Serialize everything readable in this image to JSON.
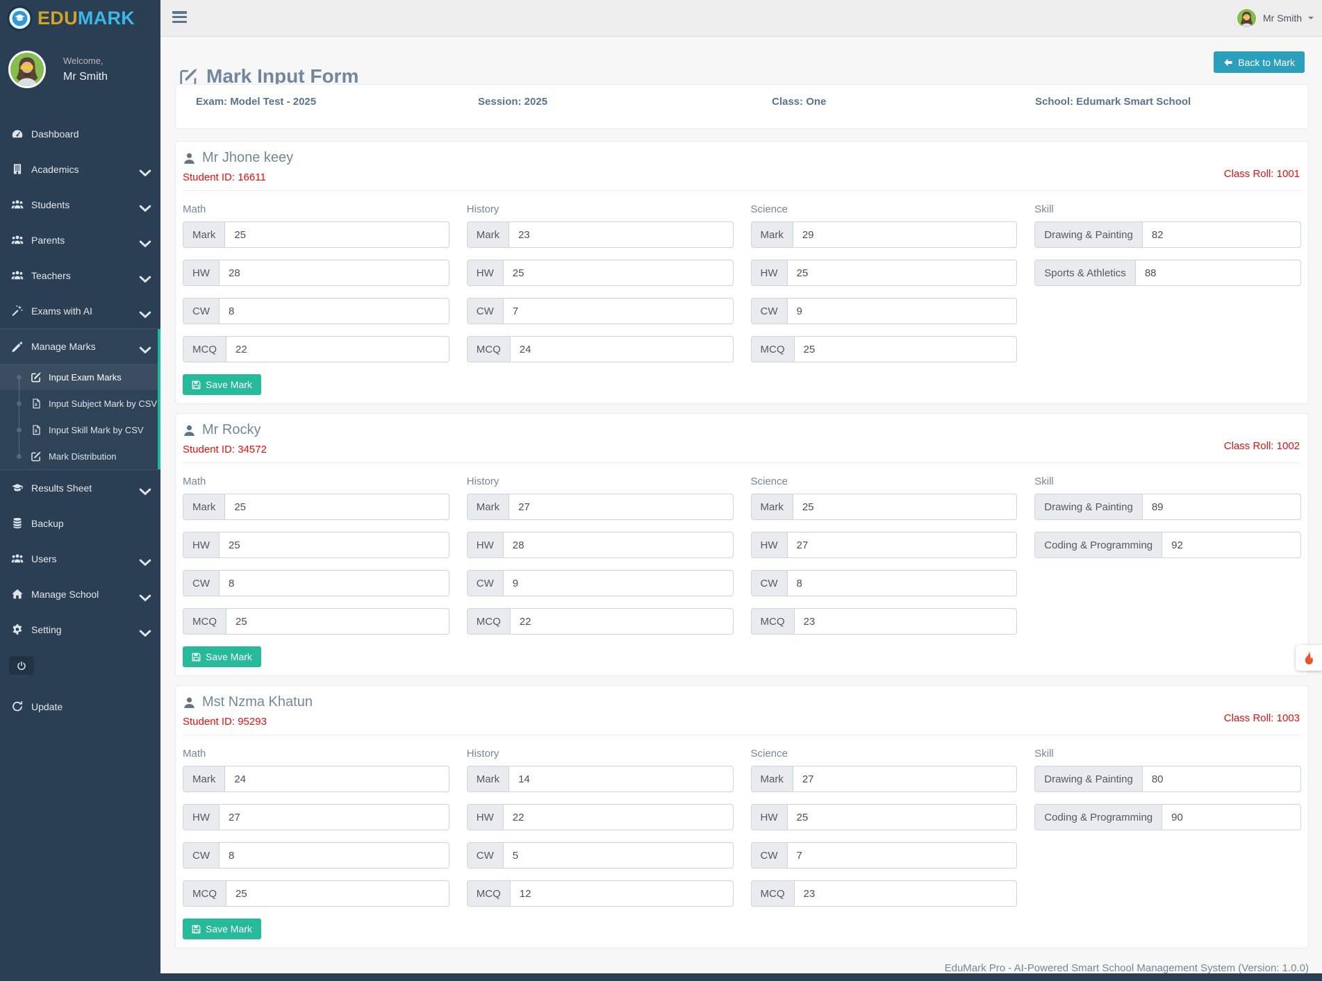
{
  "brand": {
    "logo_icon": "edumark-badge-icon",
    "edu": "EDU",
    "mark": "MARK"
  },
  "topbar": {
    "hamburger_icon": "hamburger-icon",
    "user_name": "Mr Smith",
    "avatar_icon": "user-avatar-image"
  },
  "sidebar": {
    "welcome_label": "Welcome,",
    "user_name": "Mr Smith",
    "menu_top": [
      {
        "label": "Dashboard",
        "icon": "dashboard-gauge-icon",
        "chevron": false
      },
      {
        "label": "Academics",
        "icon": "school-building-icon",
        "chevron": true
      },
      {
        "label": "Students",
        "icon": "users-group-icon",
        "chevron": true
      },
      {
        "label": "Parents",
        "icon": "users-group-icon",
        "chevron": true
      },
      {
        "label": "Teachers",
        "icon": "users-group-icon",
        "chevron": true
      },
      {
        "label": "Exams with AI",
        "icon": "magic-wand-icon",
        "chevron": true
      }
    ],
    "manage_marks": {
      "label": "Manage Marks",
      "icon": "pencil-icon",
      "chevron": true,
      "submenu": [
        {
          "label": "Input Exam Marks",
          "icon": "edit-square-icon",
          "active": true
        },
        {
          "label": "Input Subject Mark by CSV",
          "icon": "csv-file-icon",
          "active": false
        },
        {
          "label": "Input Skill Mark by CSV",
          "icon": "csv-file-icon",
          "active": false
        },
        {
          "label": "Mark Distribution",
          "icon": "edit-square-icon",
          "active": false
        }
      ]
    },
    "menu_bottom": [
      {
        "label": "Results Sheet",
        "icon": "graduation-cap-icon",
        "chevron": true
      },
      {
        "label": "Backup",
        "icon": "database-icon",
        "chevron": false
      },
      {
        "label": "Users",
        "icon": "users-group-icon",
        "chevron": true
      },
      {
        "label": "Manage School",
        "icon": "home-icon",
        "chevron": true
      },
      {
        "label": "Setting",
        "icon": "gear-icon",
        "chevron": true
      }
    ],
    "logout_icon": "power-icon",
    "update_item": {
      "label": "Update",
      "icon": "refresh-icon",
      "chevron": false
    }
  },
  "page": {
    "title": "Mark Input Form",
    "title_icon": "edit-square-icon",
    "back_button_label": "Back to Mark",
    "info_items": [
      {
        "label": "Exam: Model Test - 2025"
      },
      {
        "label": "Session: 2025"
      },
      {
        "label": "Class: One"
      },
      {
        "label": "School: Edumark Smart School"
      }
    ],
    "save_button_label": "Save Mark",
    "footer_text": "EduMark Pro - AI-Powered Smart School Management System (Version: 1.0.0)"
  },
  "students": [
    {
      "name": "Mr Jhone keey",
      "student_id_label": "Student ID: 16611",
      "class_roll_label": "Class Roll: 1001",
      "subjects": [
        {
          "label": "Math",
          "rows": [
            {
              "label": "Mark",
              "value": "25"
            },
            {
              "label": "HW",
              "value": "28"
            },
            {
              "label": "CW",
              "value": "8"
            },
            {
              "label": "MCQ",
              "value": "22"
            }
          ]
        },
        {
          "label": "History",
          "rows": [
            {
              "label": "Mark",
              "value": "23"
            },
            {
              "label": "HW",
              "value": "25"
            },
            {
              "label": "CW",
              "value": "7"
            },
            {
              "label": "MCQ",
              "value": "24"
            }
          ]
        },
        {
          "label": "Science",
          "rows": [
            {
              "label": "Mark",
              "value": "29"
            },
            {
              "label": "HW",
              "value": "25"
            },
            {
              "label": "CW",
              "value": "9"
            },
            {
              "label": "MCQ",
              "value": "25"
            }
          ]
        }
      ],
      "skill": {
        "label": "Skill",
        "rows": [
          {
            "label": "Drawing & Painting",
            "value": "82"
          },
          {
            "label": "Sports & Athletics",
            "value": "88"
          }
        ]
      }
    },
    {
      "name": "Mr Rocky",
      "student_id_label": "Student ID: 34572",
      "class_roll_label": "Class Roll: 1002",
      "subjects": [
        {
          "label": "Math",
          "rows": [
            {
              "label": "Mark",
              "value": "25"
            },
            {
              "label": "HW",
              "value": "25"
            },
            {
              "label": "CW",
              "value": "8"
            },
            {
              "label": "MCQ",
              "value": "25"
            }
          ]
        },
        {
          "label": "History",
          "rows": [
            {
              "label": "Mark",
              "value": "27"
            },
            {
              "label": "HW",
              "value": "28"
            },
            {
              "label": "CW",
              "value": "9"
            },
            {
              "label": "MCQ",
              "value": "22"
            }
          ]
        },
        {
          "label": "Science",
          "rows": [
            {
              "label": "Mark",
              "value": "25"
            },
            {
              "label": "HW",
              "value": "27"
            },
            {
              "label": "CW",
              "value": "8"
            },
            {
              "label": "MCQ",
              "value": "23"
            }
          ]
        }
      ],
      "skill": {
        "label": "Skill",
        "rows": [
          {
            "label": "Drawing & Painting",
            "value": "89"
          },
          {
            "label": "Coding & Programming",
            "value": "92"
          }
        ]
      }
    },
    {
      "name": "Mst Nzma Khatun",
      "student_id_label": "Student ID: 95293",
      "class_roll_label": "Class Roll: 1003",
      "subjects": [
        {
          "label": "Math",
          "rows": [
            {
              "label": "Mark",
              "value": "24"
            },
            {
              "label": "HW",
              "value": "27"
            },
            {
              "label": "CW",
              "value": "8"
            },
            {
              "label": "MCQ",
              "value": "25"
            }
          ]
        },
        {
          "label": "History",
          "rows": [
            {
              "label": "Mark",
              "value": "14"
            },
            {
              "label": "HW",
              "value": "22"
            },
            {
              "label": "CW",
              "value": "5"
            },
            {
              "label": "MCQ",
              "value": "12"
            }
          ]
        },
        {
          "label": "Science",
          "rows": [
            {
              "label": "Mark",
              "value": "27"
            },
            {
              "label": "HW",
              "value": "25"
            },
            {
              "label": "CW",
              "value": "7"
            },
            {
              "label": "MCQ",
              "value": "23"
            }
          ]
        }
      ],
      "skill": {
        "label": "Skill",
        "rows": [
          {
            "label": "Drawing & Painting",
            "value": "80"
          },
          {
            "label": "Coding & Programming",
            "value": "90"
          }
        ]
      }
    }
  ],
  "colors": {
    "sidebar_bg": "#2A3F54",
    "accent_teal": "#1ABB9C",
    "save_green": "#26B99A",
    "back_button_teal": "#2B9FBC",
    "alert_red": "#E90D0D",
    "flame_orange": "#E8552D",
    "brand_gold": "#D2A425",
    "brand_blue": "#3BB8E8"
  }
}
